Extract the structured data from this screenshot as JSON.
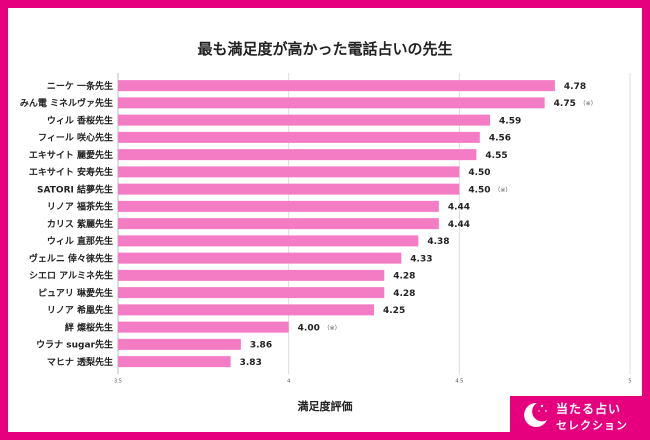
{
  "chart_data": {
    "type": "bar",
    "orientation": "horizontal",
    "title": "最も満足度が高かった電話占いの先生",
    "xlabel": "満足度評価",
    "xlim": [
      3.5,
      5
    ],
    "xticks": [
      "3.5",
      "4",
      "4.5",
      "5"
    ],
    "grid": true,
    "bar_color": "#f47cc4",
    "categories": [
      "ニーケ 一条先生",
      "みん電 ミネルヴァ先生",
      "ウィル 香桜先生",
      "フィール 咲心先生",
      "エキサイト 麗愛先生",
      "エキサイト 安寿先生",
      "SATORI 結夢先生",
      "リノア 福茶先生",
      "カリス 紫麗先生",
      "ウィル 直那先生",
      "ヴェルニ 倖々徠先生",
      "シエロ アルミネ先生",
      "ピュアリ 琳愛先生",
      "リノア 希凰先生",
      "絆 燦桜先生",
      "ウラナ sugar先生",
      "マヒナ 透梨先生"
    ],
    "values": [
      4.78,
      4.75,
      4.59,
      4.56,
      4.55,
      4.5,
      4.5,
      4.44,
      4.44,
      4.38,
      4.33,
      4.28,
      4.28,
      4.25,
      4.0,
      3.86,
      3.83
    ],
    "value_labels": [
      "4.78",
      "4.75",
      "4.59",
      "4.56",
      "4.55",
      "4.50",
      "4.50",
      "4.44",
      "4.44",
      "4.38",
      "4.33",
      "4.28",
      "4.28",
      "4.25",
      "4.00",
      "3.86",
      "3.83"
    ],
    "notes": [
      "",
      "（※）",
      "",
      "",
      "",
      "",
      "（※）",
      "",
      "",
      "",
      "",
      "",
      "",
      "",
      "（※）",
      "",
      ""
    ]
  },
  "badge": {
    "line1": "当たる占い",
    "line2": "セレクション",
    "color": "#e6007e"
  }
}
